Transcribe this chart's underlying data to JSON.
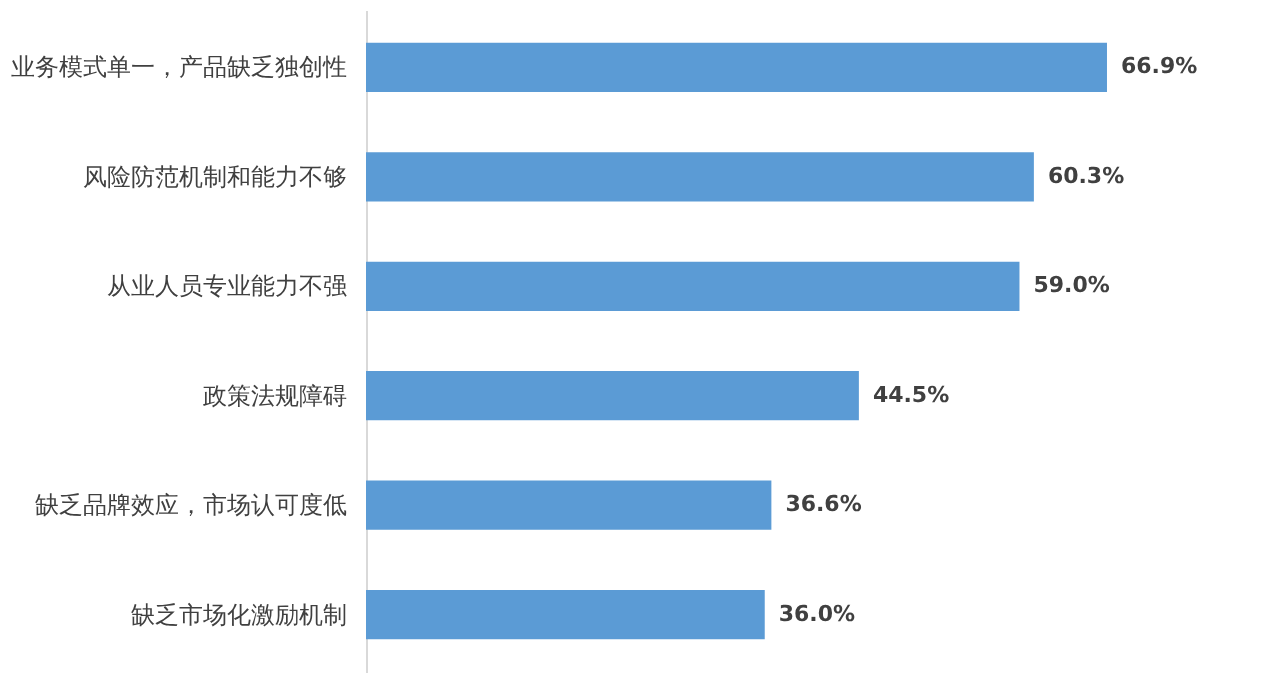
{
  "chart_data": {
    "type": "bar",
    "orientation": "horizontal",
    "categories": [
      "业务模式单一，产品缺乏独创性",
      "风险防范机制和能力不够",
      "从业人员专业能力不强",
      "政策法规障碍",
      "缺乏品牌效应，市场认可度低",
      "缺乏市场化激励机制"
    ],
    "values": [
      66.9,
      60.3,
      59.0,
      44.5,
      36.6,
      36.0
    ],
    "value_labels": [
      "66.9%",
      "60.3%",
      "59.0%",
      "44.5%",
      "36.6%",
      "36.0%"
    ],
    "color": "#5b9bd5"
  }
}
